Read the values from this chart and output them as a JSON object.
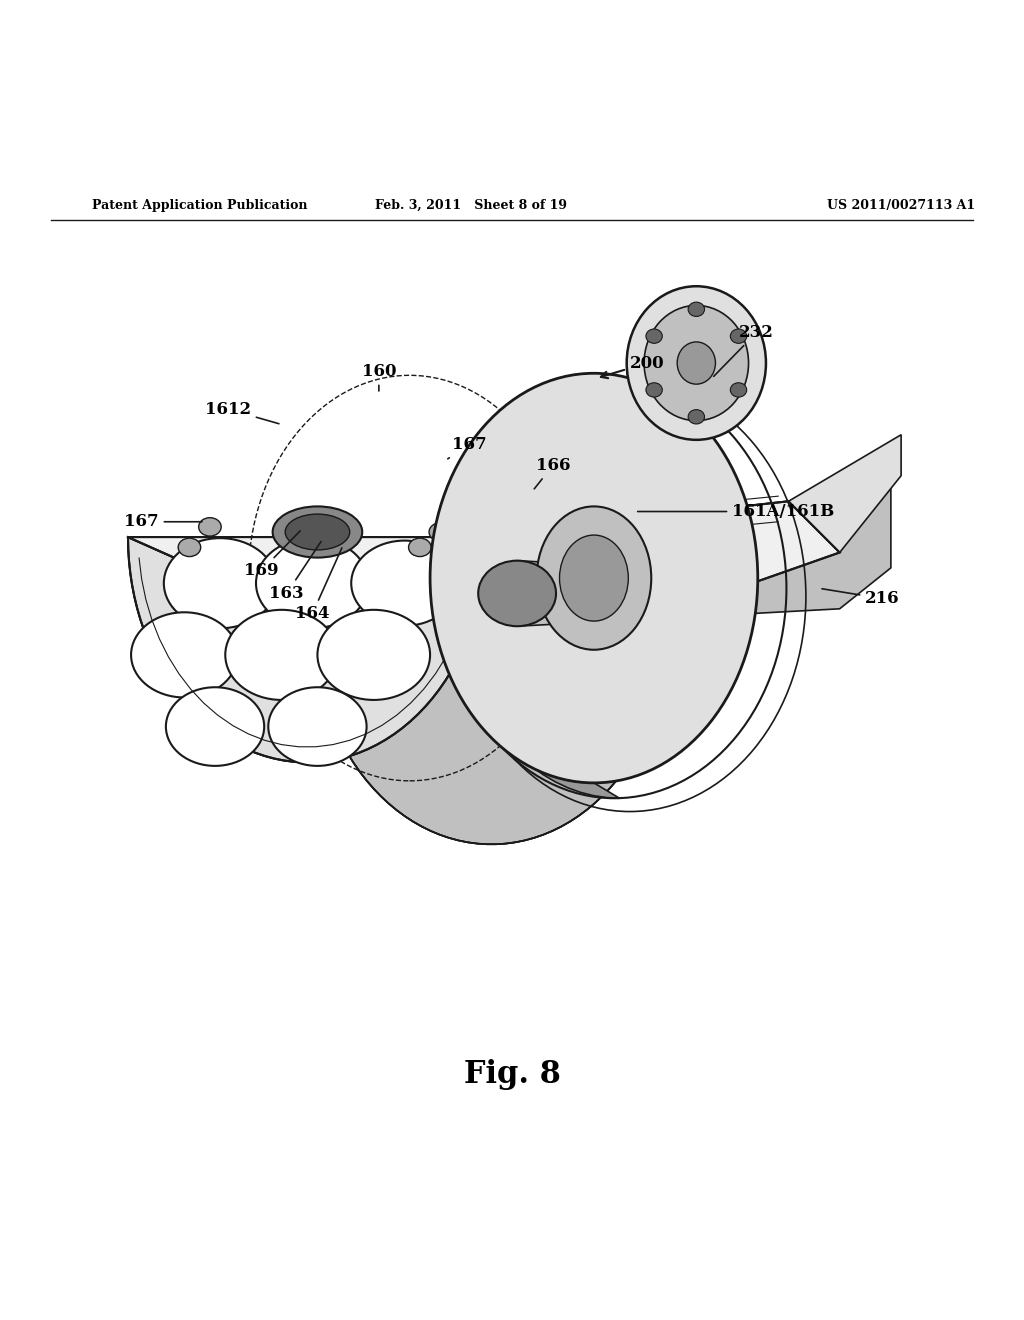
{
  "background_color": "#ffffff",
  "header_left": "Patent Application Publication",
  "header_center": "Feb. 3, 2011   Sheet 8 of 19",
  "header_right": "US 2011/0027113 A1",
  "figure_label": "Fig. 8",
  "line_color": "#1a1a1a",
  "fill_light": "#e0e0e0",
  "fill_medium": "#c0c0c0",
  "fill_dark": "#999999",
  "fill_very_light": "#f0f0f0",
  "fill_white": "#ffffff"
}
